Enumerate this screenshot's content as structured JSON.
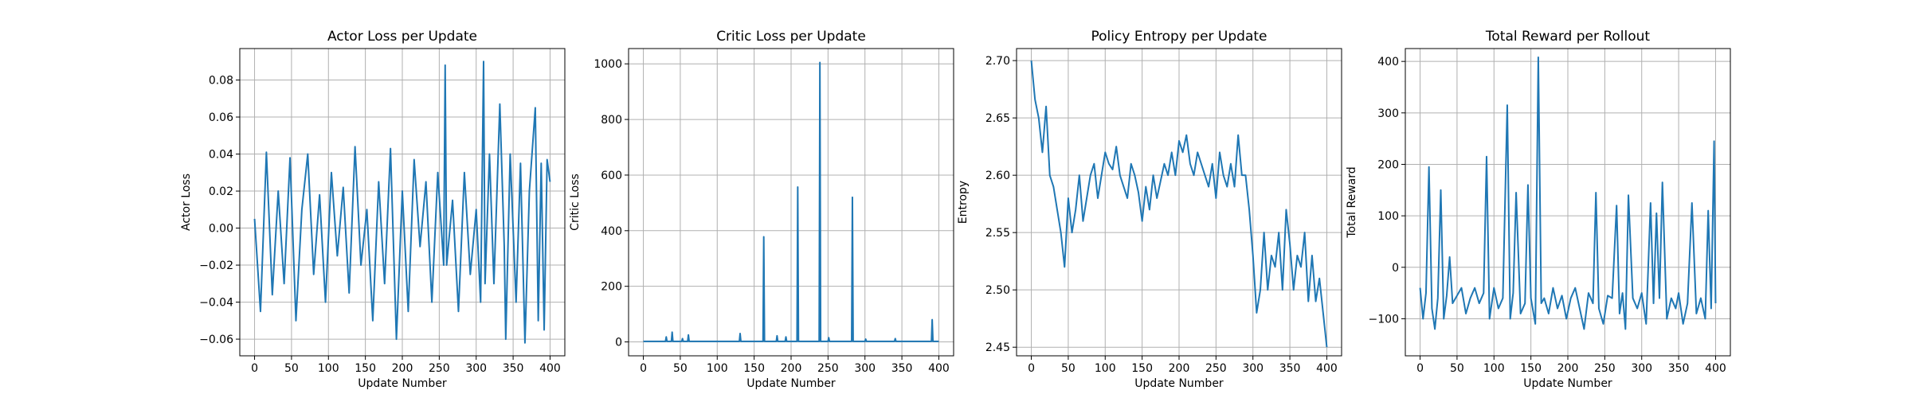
{
  "colors": {
    "series": "#1f77b4",
    "grid": "#b0b0b0",
    "axis": "#000000"
  },
  "charts": [
    {
      "type": "line",
      "title": "Actor Loss per Update",
      "xlabel": "Update Number",
      "ylabel": "Actor Loss",
      "xlim": [
        -20,
        420
      ],
      "ylim": [
        -0.069,
        0.097
      ],
      "xticks": [
        0,
        50,
        100,
        150,
        200,
        250,
        300,
        350,
        400
      ],
      "xtick_labels": [
        "0",
        "50",
        "100",
        "150",
        "200",
        "250",
        "300",
        "350",
        "400"
      ],
      "yticks": [
        -0.06,
        -0.04,
        -0.02,
        0.0,
        0.02,
        0.04,
        0.06,
        0.08
      ],
      "ytick_labels": [
        "−0.06",
        "−0.04",
        "−0.02",
        "0.00",
        "0.02",
        "0.04",
        "0.06",
        "0.08"
      ],
      "grid": true,
      "series": [
        {
          "name": "Actor Loss",
          "x": [
            0,
            8,
            16,
            24,
            32,
            40,
            48,
            56,
            64,
            72,
            80,
            88,
            96,
            104,
            112,
            120,
            128,
            136,
            144,
            152,
            160,
            168,
            176,
            184,
            192,
            200,
            208,
            216,
            224,
            232,
            240,
            248,
            256,
            258,
            260,
            268,
            276,
            284,
            292,
            300,
            306,
            310,
            312,
            318,
            324,
            332,
            338,
            340,
            346,
            354,
            360,
            366,
            372,
            380,
            384,
            388,
            392,
            396,
            400
          ],
          "values": [
            0.005,
            -0.045,
            0.041,
            -0.036,
            0.02,
            -0.03,
            0.038,
            -0.05,
            0.01,
            0.04,
            -0.025,
            0.018,
            -0.04,
            0.03,
            -0.015,
            0.022,
            -0.035,
            0.044,
            -0.02,
            0.01,
            -0.05,
            0.025,
            -0.03,
            0.043,
            -0.06,
            0.02,
            -0.045,
            0.037,
            -0.01,
            0.025,
            -0.04,
            0.03,
            -0.02,
            0.088,
            -0.02,
            0.015,
            -0.045,
            0.03,
            -0.025,
            0.01,
            -0.04,
            0.09,
            -0.03,
            0.04,
            -0.03,
            0.067,
            -0.01,
            -0.06,
            0.04,
            -0.04,
            0.035,
            -0.062,
            0.02,
            0.065,
            -0.05,
            0.035,
            -0.055,
            0.037,
            0.025
          ]
        }
      ]
    },
    {
      "type": "line",
      "title": "Critic Loss per Update",
      "xlabel": "Update Number",
      "ylabel": "Critic Loss",
      "xlim": [
        -20,
        420
      ],
      "ylim": [
        -50,
        1055
      ],
      "xticks": [
        0,
        50,
        100,
        150,
        200,
        250,
        300,
        350,
        400
      ],
      "xtick_labels": [
        "0",
        "50",
        "100",
        "150",
        "200",
        "250",
        "300",
        "350",
        "400"
      ],
      "yticks": [
        0,
        200,
        400,
        600,
        800,
        1000
      ],
      "ytick_labels": [
        "0",
        "200",
        "400",
        "600",
        "800",
        "1000"
      ],
      "grid": true,
      "series": [
        {
          "name": "Critic Loss",
          "x": [
            0,
            30,
            31,
            32,
            38,
            39,
            40,
            52,
            53,
            54,
            60,
            61,
            62,
            130,
            131,
            132,
            162,
            163,
            164,
            180,
            181,
            182,
            192,
            193,
            194,
            208,
            209,
            210,
            238,
            239,
            240,
            250,
            251,
            252,
            282,
            283,
            284,
            300,
            301,
            302,
            340,
            341,
            342,
            390,
            391,
            392,
            400
          ],
          "values": [
            2,
            2,
            18,
            2,
            2,
            35,
            2,
            2,
            12,
            2,
            2,
            25,
            2,
            2,
            30,
            2,
            2,
            378,
            2,
            2,
            22,
            2,
            2,
            18,
            2,
            2,
            557,
            2,
            2,
            1005,
            2,
            2,
            15,
            2,
            2,
            520,
            2,
            2,
            10,
            2,
            2,
            12,
            2,
            2,
            80,
            2,
            2
          ]
        }
      ]
    },
    {
      "type": "line",
      "title": "Policy Entropy per Update",
      "xlabel": "Update Number",
      "ylabel": "Entropy",
      "xlim": [
        -20,
        420
      ],
      "ylim": [
        2.4425,
        2.7105
      ],
      "xticks": [
        0,
        50,
        100,
        150,
        200,
        250,
        300,
        350,
        400
      ],
      "xtick_labels": [
        "0",
        "50",
        "100",
        "150",
        "200",
        "250",
        "300",
        "350",
        "400"
      ],
      "yticks": [
        2.45,
        2.5,
        2.55,
        2.6,
        2.65,
        2.7
      ],
      "ytick_labels": [
        "2.45",
        "2.50",
        "2.55",
        "2.60",
        "2.65",
        "2.70"
      ],
      "grid": true,
      "series": [
        {
          "name": "Entropy",
          "x": [
            0,
            5,
            10,
            15,
            20,
            25,
            30,
            35,
            40,
            45,
            50,
            55,
            60,
            65,
            70,
            75,
            80,
            85,
            90,
            95,
            100,
            105,
            110,
            115,
            120,
            125,
            130,
            135,
            140,
            145,
            150,
            155,
            160,
            165,
            170,
            175,
            180,
            185,
            190,
            195,
            200,
            205,
            210,
            215,
            220,
            225,
            230,
            235,
            240,
            245,
            250,
            255,
            260,
            265,
            270,
            275,
            280,
            285,
            290,
            295,
            300,
            305,
            310,
            315,
            320,
            325,
            330,
            335,
            340,
            345,
            350,
            355,
            360,
            365,
            370,
            375,
            380,
            385,
            390,
            395,
            400
          ],
          "values": [
            2.7,
            2.666,
            2.65,
            2.62,
            2.66,
            2.6,
            2.59,
            2.57,
            2.55,
            2.52,
            2.58,
            2.55,
            2.57,
            2.6,
            2.56,
            2.58,
            2.6,
            2.61,
            2.58,
            2.6,
            2.62,
            2.61,
            2.605,
            2.625,
            2.6,
            2.59,
            2.58,
            2.61,
            2.6,
            2.585,
            2.56,
            2.59,
            2.57,
            2.6,
            2.58,
            2.595,
            2.61,
            2.6,
            2.62,
            2.6,
            2.63,
            2.62,
            2.635,
            2.61,
            2.6,
            2.62,
            2.61,
            2.6,
            2.59,
            2.61,
            2.58,
            2.62,
            2.6,
            2.59,
            2.61,
            2.59,
            2.635,
            2.6,
            2.6,
            2.57,
            2.53,
            2.48,
            2.5,
            2.55,
            2.5,
            2.53,
            2.52,
            2.55,
            2.5,
            2.57,
            2.54,
            2.5,
            2.53,
            2.52,
            2.55,
            2.49,
            2.53,
            2.49,
            2.51,
            2.48,
            2.45
          ]
        }
      ]
    },
    {
      "type": "line",
      "title": "Total Reward per Rollout",
      "xlabel": "Update Number",
      "ylabel": "Total Reward",
      "xlim": [
        -20,
        420
      ],
      "ylim": [
        -172,
        425
      ],
      "xticks": [
        0,
        50,
        100,
        150,
        200,
        250,
        300,
        350,
        400
      ],
      "xtick_labels": [
        "0",
        "50",
        "100",
        "150",
        "200",
        "250",
        "300",
        "350",
        "400"
      ],
      "yticks": [
        -100,
        0,
        100,
        200,
        300,
        400
      ],
      "ytick_labels": [
        "−100",
        "0",
        "100",
        "200",
        "300",
        "400"
      ],
      "grid": true,
      "series": [
        {
          "name": "Total Reward",
          "x": [
            0,
            4,
            8,
            12,
            16,
            20,
            24,
            28,
            32,
            36,
            40,
            44,
            50,
            56,
            62,
            68,
            74,
            80,
            86,
            90,
            94,
            100,
            106,
            112,
            118,
            122,
            126,
            130,
            136,
            142,
            146,
            150,
            156,
            160,
            164,
            168,
            174,
            180,
            186,
            192,
            198,
            204,
            210,
            216,
            222,
            228,
            234,
            238,
            242,
            248,
            254,
            260,
            266,
            270,
            274,
            278,
            282,
            288,
            294,
            300,
            306,
            312,
            316,
            320,
            324,
            328,
            334,
            340,
            346,
            350,
            356,
            362,
            368,
            374,
            380,
            386,
            390,
            394,
            398,
            400
          ],
          "values": [
            -40,
            -100,
            -50,
            195,
            -80,
            -120,
            -60,
            150,
            -100,
            -55,
            20,
            -70,
            -55,
            -40,
            -90,
            -60,
            -40,
            -70,
            -50,
            215,
            -100,
            -40,
            -80,
            -60,
            315,
            -100,
            -50,
            145,
            -90,
            -70,
            160,
            -60,
            -110,
            408,
            -70,
            -60,
            -90,
            -40,
            -80,
            -55,
            -100,
            -60,
            -40,
            -80,
            -120,
            -50,
            -70,
            145,
            -80,
            -110,
            -55,
            -60,
            120,
            -90,
            -50,
            -120,
            140,
            -60,
            -80,
            -50,
            -110,
            125,
            -70,
            105,
            -60,
            165,
            -100,
            -60,
            -80,
            -50,
            -110,
            -70,
            125,
            -90,
            -60,
            -100,
            110,
            -80,
            245,
            -70
          ]
        }
      ]
    }
  ]
}
